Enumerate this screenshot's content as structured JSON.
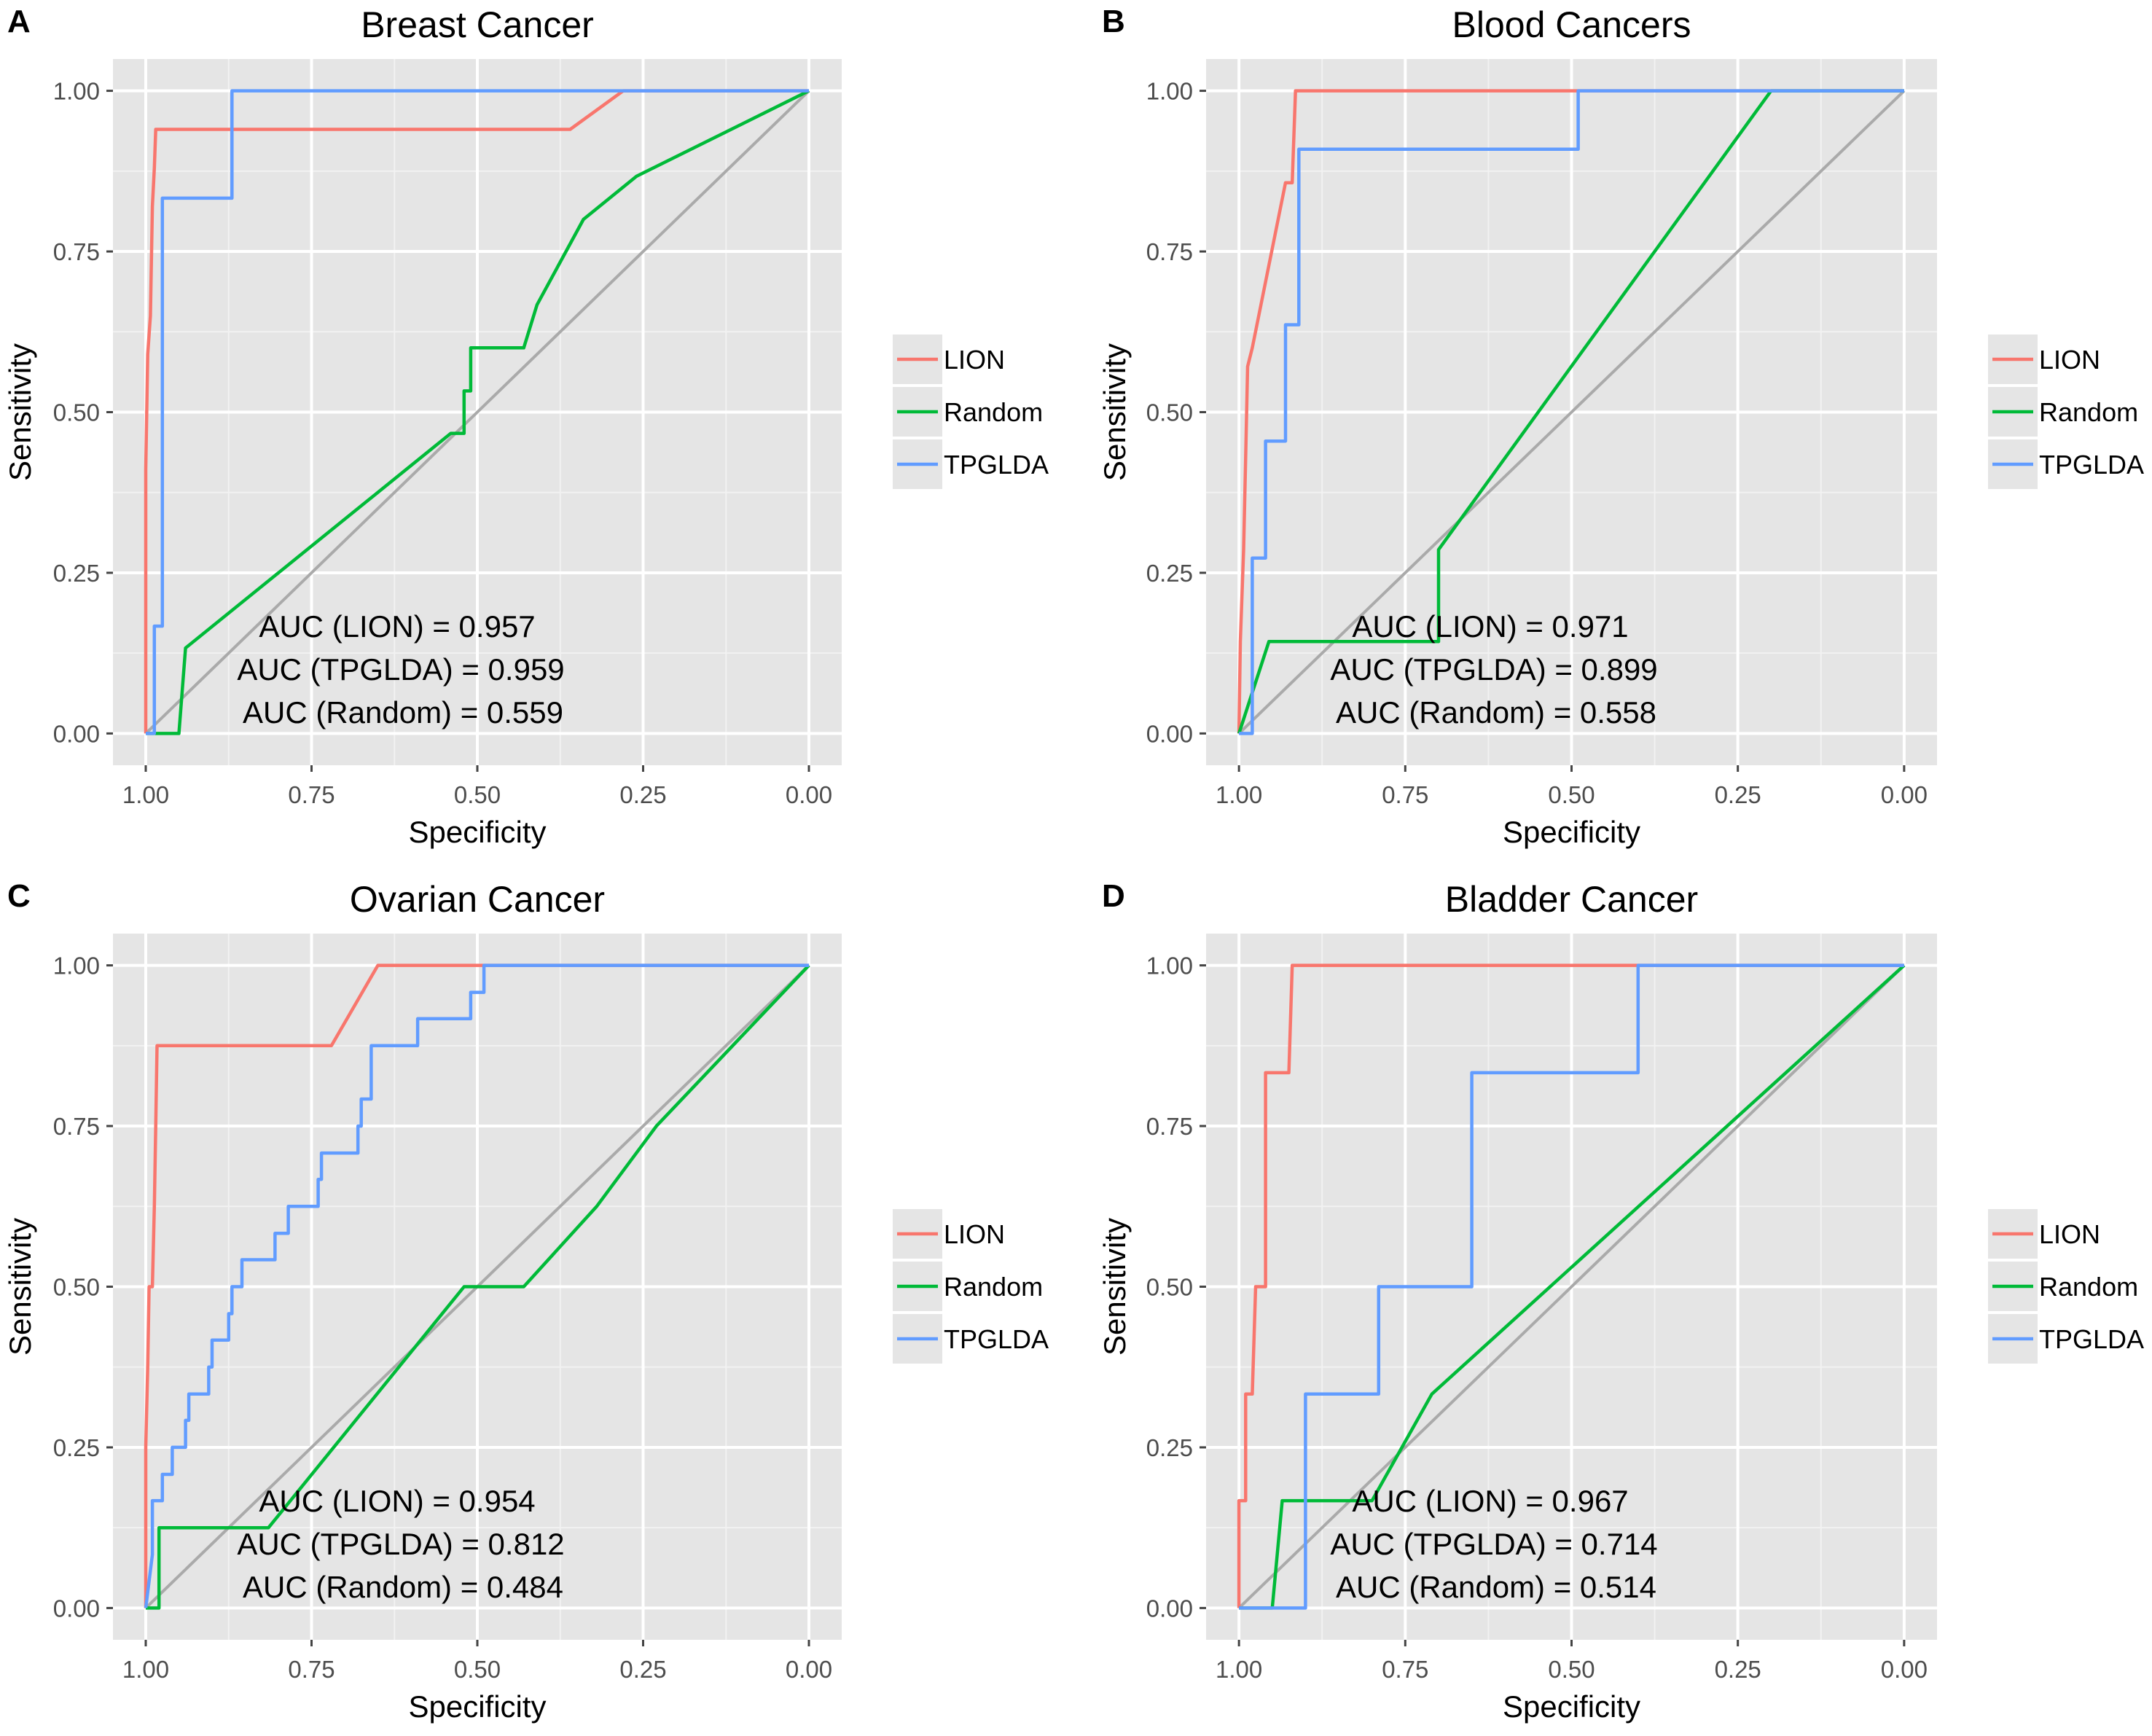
{
  "chart_data": [
    {
      "type": "line",
      "panel_label": "A",
      "title": "Breast Cancer",
      "xlabel": "Specificity",
      "ylabel": "Sensitivity",
      "xlim": [
        1.0,
        0.0
      ],
      "ylim": [
        0.0,
        1.0
      ],
      "x_ticks": [
        1.0,
        0.75,
        0.5,
        0.25,
        0.0
      ],
      "x_tick_labels": [
        "1.00",
        "0.75",
        "0.50",
        "0.25",
        "0.00"
      ],
      "y_ticks": [
        0.0,
        0.25,
        0.5,
        0.75,
        1.0
      ],
      "y_tick_labels": [
        "0.00",
        "0.25",
        "0.50",
        "0.75",
        "1.00"
      ],
      "legend": [
        "LION",
        "Random",
        "TPGLDA"
      ],
      "annotations": [
        "AUC (LION) = 0.957",
        "AUC (TPGLDA) = 0.959",
        "AUC (Random) = 0.559"
      ],
      "series": [
        {
          "name": "LION",
          "color": "#F8766D",
          "points": [
            [
              1.0,
              0.0
            ],
            [
              1.0,
              0.41
            ],
            [
              0.997,
              0.59
            ],
            [
              0.993,
              0.65
            ],
            [
              0.99,
              0.82
            ],
            [
              0.987,
              0.88
            ],
            [
              0.985,
              0.94
            ],
            [
              0.36,
              0.94
            ],
            [
              0.28,
              1.0
            ],
            [
              0.0,
              1.0
            ]
          ]
        },
        {
          "name": "Random",
          "color": "#00BA38",
          "points": [
            [
              1.0,
              0.0
            ],
            [
              0.95,
              0.0
            ],
            [
              0.94,
              0.133
            ],
            [
              0.54,
              0.467
            ],
            [
              0.52,
              0.467
            ],
            [
              0.52,
              0.533
            ],
            [
              0.51,
              0.533
            ],
            [
              0.51,
              0.6
            ],
            [
              0.43,
              0.6
            ],
            [
              0.41,
              0.667
            ],
            [
              0.34,
              0.8
            ],
            [
              0.26,
              0.867
            ],
            [
              0.0,
              1.0
            ]
          ]
        },
        {
          "name": "TPGLDA",
          "color": "#619CFF",
          "points": [
            [
              1.0,
              0.0
            ],
            [
              0.987,
              0.0
            ],
            [
              0.987,
              0.167
            ],
            [
              0.975,
              0.167
            ],
            [
              0.975,
              0.833
            ],
            [
              0.87,
              0.833
            ],
            [
              0.87,
              1.0
            ],
            [
              0.0,
              1.0
            ]
          ]
        },
        {
          "name": "diagonal",
          "color": "#AAAAAA",
          "points": [
            [
              1.0,
              0.0
            ],
            [
              0.0,
              1.0
            ]
          ]
        }
      ]
    },
    {
      "type": "line",
      "panel_label": "B",
      "title": "Blood Cancers",
      "xlabel": "Specificity",
      "ylabel": "Sensitivity",
      "xlim": [
        1.0,
        0.0
      ],
      "ylim": [
        0.0,
        1.0
      ],
      "x_ticks": [
        1.0,
        0.75,
        0.5,
        0.25,
        0.0
      ],
      "x_tick_labels": [
        "1.00",
        "0.75",
        "0.50",
        "0.25",
        "0.00"
      ],
      "y_ticks": [
        0.0,
        0.25,
        0.5,
        0.75,
        1.0
      ],
      "y_tick_labels": [
        "0.00",
        "0.25",
        "0.50",
        "0.75",
        "1.00"
      ],
      "legend": [
        "LION",
        "Random",
        "TPGLDA"
      ],
      "annotations": [
        "AUC (LION) = 0.971",
        "AUC (TPGLDA) = 0.899",
        "AUC (Random) = 0.558"
      ],
      "series": [
        {
          "name": "LION",
          "color": "#F8766D",
          "points": [
            [
              1.0,
              0.0
            ],
            [
              0.998,
              0.143
            ],
            [
              0.993,
              0.286
            ],
            [
              0.99,
              0.429
            ],
            [
              0.987,
              0.571
            ],
            [
              0.98,
              0.6
            ],
            [
              0.93,
              0.857
            ],
            [
              0.92,
              0.857
            ],
            [
              0.915,
              1.0
            ],
            [
              0.0,
              1.0
            ]
          ]
        },
        {
          "name": "Random",
          "color": "#00BA38",
          "points": [
            [
              1.0,
              0.0
            ],
            [
              0.955,
              0.143
            ],
            [
              0.7,
              0.143
            ],
            [
              0.7,
              0.286
            ],
            [
              0.2,
              1.0
            ],
            [
              0.0,
              1.0
            ]
          ]
        },
        {
          "name": "TPGLDA",
          "color": "#619CFF",
          "points": [
            [
              1.0,
              0.0
            ],
            [
              0.98,
              0.0
            ],
            [
              0.98,
              0.273
            ],
            [
              0.96,
              0.273
            ],
            [
              0.96,
              0.455
            ],
            [
              0.93,
              0.455
            ],
            [
              0.93,
              0.636
            ],
            [
              0.91,
              0.636
            ],
            [
              0.91,
              0.909
            ],
            [
              0.49,
              0.909
            ],
            [
              0.49,
              1.0
            ],
            [
              0.0,
              1.0
            ]
          ]
        },
        {
          "name": "diagonal",
          "color": "#AAAAAA",
          "points": [
            [
              1.0,
              0.0
            ],
            [
              0.0,
              1.0
            ]
          ]
        }
      ]
    },
    {
      "type": "line",
      "panel_label": "C",
      "title": "Ovarian Cancer",
      "xlabel": "Specificity",
      "ylabel": "Sensitivity",
      "xlim": [
        1.0,
        0.0
      ],
      "ylim": [
        0.0,
        1.0
      ],
      "x_ticks": [
        1.0,
        0.75,
        0.5,
        0.25,
        0.0
      ],
      "x_tick_labels": [
        "1.00",
        "0.75",
        "0.50",
        "0.25",
        "0.00"
      ],
      "y_ticks": [
        0.0,
        0.25,
        0.5,
        0.75,
        1.0
      ],
      "y_tick_labels": [
        "0.00",
        "0.25",
        "0.50",
        "0.75",
        "1.00"
      ],
      "legend": [
        "LION",
        "Random",
        "TPGLDA"
      ],
      "annotations": [
        "AUC (LION) = 0.954",
        "AUC (TPGLDA) = 0.812",
        "AUC (Random) = 0.484"
      ],
      "series": [
        {
          "name": "LION",
          "color": "#F8766D",
          "points": [
            [
              1.0,
              0.0
            ],
            [
              1.0,
              0.25
            ],
            [
              0.997,
              0.375
            ],
            [
              0.995,
              0.5
            ],
            [
              0.99,
              0.5
            ],
            [
              0.987,
              0.625
            ],
            [
              0.985,
              0.75
            ],
            [
              0.983,
              0.875
            ],
            [
              0.72,
              0.875
            ],
            [
              0.65,
              1.0
            ],
            [
              0.0,
              1.0
            ]
          ]
        },
        {
          "name": "Random",
          "color": "#00BA38",
          "points": [
            [
              1.0,
              0.0
            ],
            [
              0.98,
              0.0
            ],
            [
              0.98,
              0.125
            ],
            [
              0.815,
              0.125
            ],
            [
              0.52,
              0.5
            ],
            [
              0.43,
              0.5
            ],
            [
              0.32,
              0.625
            ],
            [
              0.23,
              0.75
            ],
            [
              0.0,
              1.0
            ]
          ]
        },
        {
          "name": "TPGLDA",
          "color": "#619CFF",
          "points": [
            [
              1.0,
              0.0
            ],
            [
              0.99,
              0.083
            ],
            [
              0.99,
              0.167
            ],
            [
              0.975,
              0.167
            ],
            [
              0.975,
              0.208
            ],
            [
              0.96,
              0.208
            ],
            [
              0.96,
              0.25
            ],
            [
              0.94,
              0.25
            ],
            [
              0.94,
              0.292
            ],
            [
              0.935,
              0.292
            ],
            [
              0.935,
              0.333
            ],
            [
              0.905,
              0.333
            ],
            [
              0.905,
              0.375
            ],
            [
              0.9,
              0.375
            ],
            [
              0.9,
              0.417
            ],
            [
              0.875,
              0.417
            ],
            [
              0.875,
              0.458
            ],
            [
              0.87,
              0.458
            ],
            [
              0.87,
              0.5
            ],
            [
              0.855,
              0.5
            ],
            [
              0.855,
              0.542
            ],
            [
              0.805,
              0.542
            ],
            [
              0.805,
              0.583
            ],
            [
              0.785,
              0.583
            ],
            [
              0.785,
              0.625
            ],
            [
              0.74,
              0.625
            ],
            [
              0.74,
              0.667
            ],
            [
              0.735,
              0.667
            ],
            [
              0.735,
              0.708
            ],
            [
              0.68,
              0.708
            ],
            [
              0.68,
              0.75
            ],
            [
              0.675,
              0.75
            ],
            [
              0.675,
              0.792
            ],
            [
              0.66,
              0.792
            ],
            [
              0.66,
              0.875
            ],
            [
              0.59,
              0.875
            ],
            [
              0.59,
              0.917
            ],
            [
              0.51,
              0.917
            ],
            [
              0.51,
              0.958
            ],
            [
              0.49,
              0.958
            ],
            [
              0.49,
              1.0
            ],
            [
              0.0,
              1.0
            ]
          ]
        },
        {
          "name": "diagonal",
          "color": "#AAAAAA",
          "points": [
            [
              1.0,
              0.0
            ],
            [
              0.0,
              1.0
            ]
          ]
        }
      ]
    },
    {
      "type": "line",
      "panel_label": "D",
      "title": "Bladder Cancer",
      "xlabel": "Specificity",
      "ylabel": "Sensitivity",
      "xlim": [
        1.0,
        0.0
      ],
      "ylim": [
        0.0,
        1.0
      ],
      "x_ticks": [
        1.0,
        0.75,
        0.5,
        0.25,
        0.0
      ],
      "x_tick_labels": [
        "1.00",
        "0.75",
        "0.50",
        "0.25",
        "0.00"
      ],
      "y_ticks": [
        0.0,
        0.25,
        0.5,
        0.75,
        1.0
      ],
      "y_tick_labels": [
        "0.00",
        "0.25",
        "0.50",
        "0.75",
        "1.00"
      ],
      "legend": [
        "LION",
        "Random",
        "TPGLDA"
      ],
      "annotations": [
        "AUC (LION) = 0.967",
        "AUC (TPGLDA) = 0.714",
        "AUC (Random) = 0.514"
      ],
      "series": [
        {
          "name": "LION",
          "color": "#F8766D",
          "points": [
            [
              1.0,
              0.0
            ],
            [
              1.0,
              0.167
            ],
            [
              0.99,
              0.167
            ],
            [
              0.99,
              0.333
            ],
            [
              0.98,
              0.333
            ],
            [
              0.975,
              0.5
            ],
            [
              0.96,
              0.5
            ],
            [
              0.96,
              0.833
            ],
            [
              0.925,
              0.833
            ],
            [
              0.92,
              1.0
            ],
            [
              0.0,
              1.0
            ]
          ]
        },
        {
          "name": "Random",
          "color": "#00BA38",
          "points": [
            [
              1.0,
              0.0
            ],
            [
              0.95,
              0.0
            ],
            [
              0.935,
              0.167
            ],
            [
              0.8,
              0.167
            ],
            [
              0.71,
              0.333
            ],
            [
              0.0,
              1.0
            ]
          ]
        },
        {
          "name": "TPGLDA",
          "color": "#619CFF",
          "points": [
            [
              1.0,
              0.0
            ],
            [
              0.9,
              0.0
            ],
            [
              0.9,
              0.333
            ],
            [
              0.79,
              0.333
            ],
            [
              0.79,
              0.5
            ],
            [
              0.65,
              0.5
            ],
            [
              0.65,
              0.833
            ],
            [
              0.4,
              0.833
            ],
            [
              0.4,
              1.0
            ],
            [
              0.0,
              1.0
            ]
          ]
        },
        {
          "name": "diagonal",
          "color": "#AAAAAA",
          "points": [
            [
              1.0,
              0.0
            ],
            [
              0.0,
              1.0
            ]
          ]
        }
      ]
    }
  ]
}
